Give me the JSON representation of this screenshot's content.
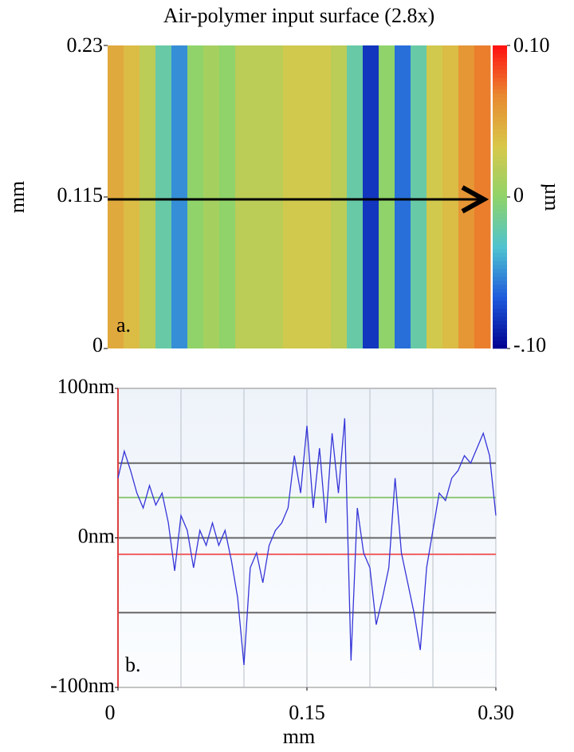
{
  "chart_data": [
    {
      "type": "heatmap",
      "title": "Air-polymer input surface (2.8x)",
      "ylabel": "mm",
      "colorbar_label": "µm",
      "annotation": "a.",
      "x": [
        0.00625,
        0.01875,
        0.03125,
        0.04375,
        0.05625,
        0.06875,
        0.08125,
        0.09375,
        0.10625,
        0.11875,
        0.13125,
        0.14375,
        0.15625,
        0.16875,
        0.18125,
        0.19375,
        0.20625,
        0.21875,
        0.23125,
        0.24375,
        0.25625,
        0.26875,
        0.28125,
        0.29375
      ],
      "values": [
        0.05,
        0.04,
        0.02,
        -0.02,
        -0.05,
        0,
        0.01,
        0,
        0.02,
        0.02,
        0.02,
        0.03,
        0.03,
        0.03,
        0.02,
        -0.02,
        -0.08,
        0,
        -0.06,
        -0.02,
        0.03,
        0.04,
        0.06,
        0.07
      ],
      "xlim": [
        0,
        0.3
      ],
      "ylim": [
        0,
        0.23
      ],
      "yticks": [
        0,
        0.115,
        0.23
      ],
      "zlim": [
        -0.1,
        0.1
      ],
      "zticks": [
        {
          "value": -0.1,
          "label": "-.10"
        },
        0,
        {
          "value": 0.1,
          "label": "0.10"
        }
      ],
      "colors": [
        "#00008f",
        "#1e5adc",
        "#4ec3d0",
        "#8fd36a",
        "#d8c84a",
        "#e88a30",
        "#ff1010"
      ]
    },
    {
      "type": "line",
      "xlabel": "mm",
      "annotation": "b.",
      "color": "#3535d8",
      "x": [
        0,
        0.005,
        0.01,
        0.015,
        0.02,
        0.025,
        0.03,
        0.035,
        0.04,
        0.045,
        0.05,
        0.055,
        0.06,
        0.065,
        0.07,
        0.075,
        0.08,
        0.085,
        0.09,
        0.095,
        0.1,
        0.105,
        0.11,
        0.115,
        0.12,
        0.125,
        0.13,
        0.135,
        0.14,
        0.145,
        0.15,
        0.155,
        0.16,
        0.165,
        0.17,
        0.175,
        0.18,
        0.185,
        0.19,
        0.195,
        0.2,
        0.205,
        0.21,
        0.215,
        0.22,
        0.225,
        0.23,
        0.235,
        0.24,
        0.245,
        0.25,
        0.255,
        0.26,
        0.265,
        0.27,
        0.275,
        0.28,
        0.285,
        0.29,
        0.295,
        0.3
      ],
      "values": [
        40,
        58,
        45,
        30,
        20,
        35,
        22,
        30,
        10,
        -22,
        15,
        5,
        -20,
        5,
        -5,
        10,
        -5,
        5,
        -15,
        -40,
        -85,
        -20,
        -10,
        -30,
        -5,
        5,
        10,
        20,
        55,
        30,
        75,
        20,
        60,
        10,
        70,
        30,
        80,
        -82,
        20,
        -10,
        -20,
        -58,
        -40,
        -20,
        40,
        -10,
        -30,
        -50,
        -75,
        -20,
        5,
        30,
        25,
        40,
        45,
        55,
        50,
        60,
        70,
        55,
        15
      ],
      "xlim": [
        0,
        0.3
      ],
      "ylim": [
        -100,
        100
      ],
      "xticks": [
        0,
        0.15,
        {
          "value": 0.3,
          "label": "0.30"
        }
      ],
      "yticks": [
        {
          "value": -100,
          "label": "-100nm"
        },
        {
          "value": 0,
          "label": "0nm"
        },
        {
          "value": 100,
          "label": "100nm"
        }
      ],
      "xgrid": [
        0.05,
        0.1,
        0.15,
        0.2,
        0.25,
        0.3
      ],
      "ygrid": [
        50,
        0,
        -50
      ],
      "reference_lines": [
        {
          "value": 27,
          "color": "#8fc77a"
        },
        {
          "value": -11,
          "color": "#f06060"
        }
      ]
    }
  ]
}
